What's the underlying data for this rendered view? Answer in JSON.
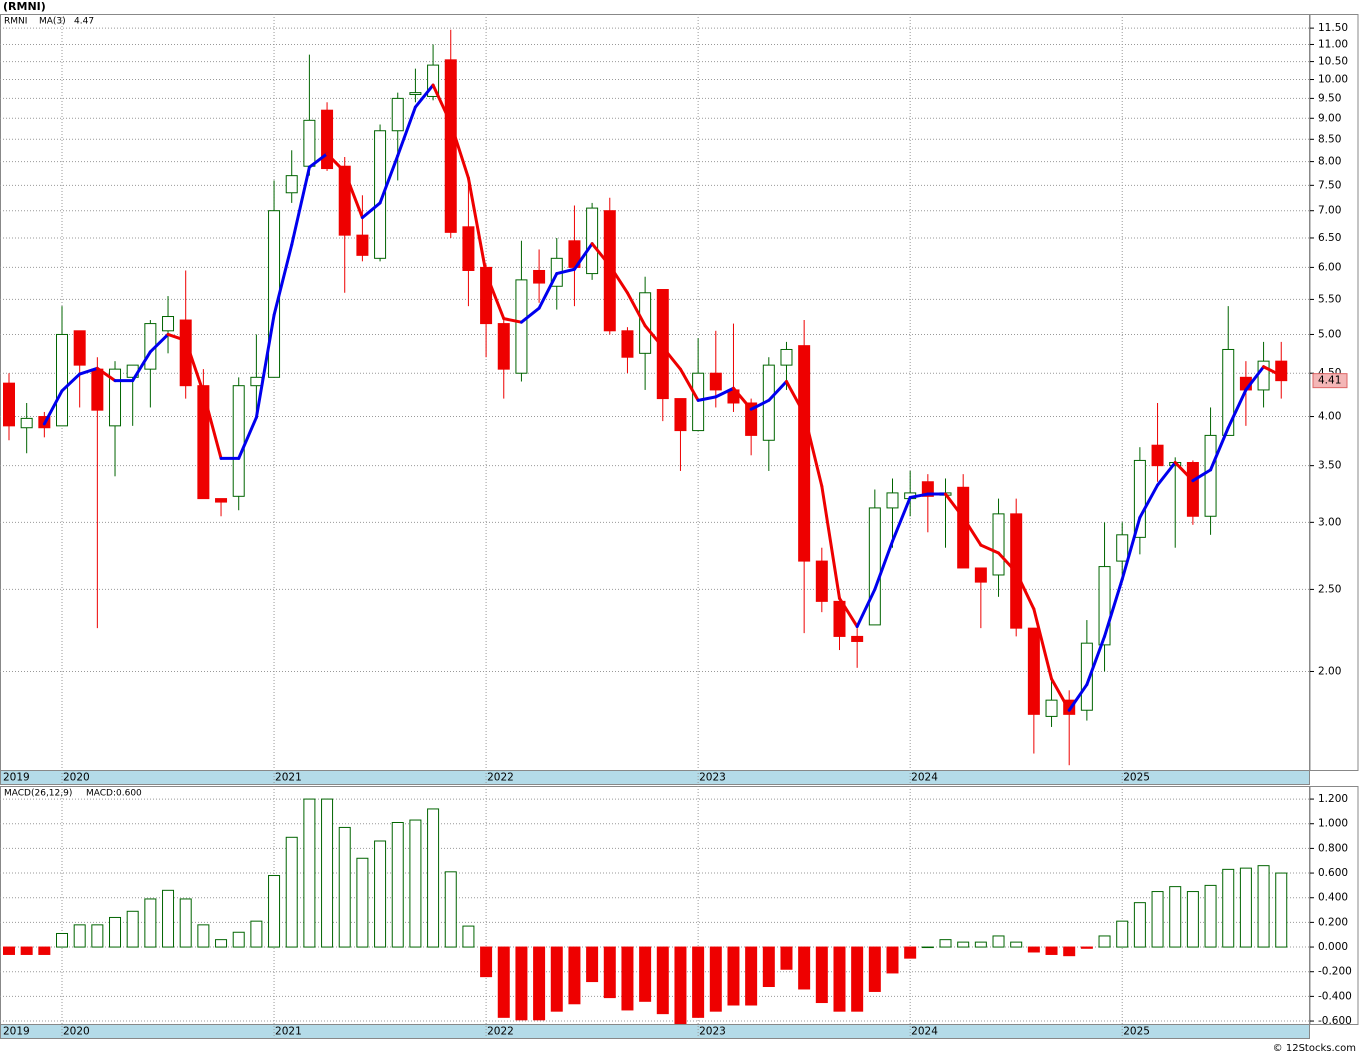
{
  "chart_data": [
    {
      "type": "candlestick",
      "title": "(RMNI)",
      "symbol": "RMNI",
      "ma_name": "MA(3)",
      "categories": [
        "2019",
        null,
        null,
        "2020",
        null,
        null,
        null,
        null,
        null,
        null,
        null,
        null,
        null,
        null,
        null,
        "2021",
        null,
        null,
        null,
        null,
        null,
        null,
        null,
        null,
        null,
        null,
        null,
        "2022",
        null,
        null,
        null,
        null,
        null,
        null,
        null,
        null,
        null,
        null,
        null,
        "2023",
        null,
        null,
        null,
        null,
        null,
        null,
        null,
        null,
        null,
        null,
        null,
        "2024",
        null,
        null,
        null,
        null,
        null,
        null,
        null,
        null,
        null,
        null,
        null,
        "2025",
        null,
        null,
        null,
        null,
        null,
        null,
        null,
        null,
        null
      ],
      "open": [
        4.38,
        3.88,
        4.0,
        3.9,
        5.05,
        4.55,
        3.9,
        4.45,
        4.55,
        5.05,
        5.2,
        4.35,
        3.2,
        3.22,
        4.35,
        4.45,
        7.35,
        7.9,
        9.2,
        7.9,
        6.55,
        6.15,
        8.7,
        9.6,
        9.55,
        10.55,
        6.7,
        6.0,
        5.15,
        4.5,
        5.95,
        5.7,
        6.45,
        5.9,
        7.0,
        5.05,
        4.75,
        5.65,
        4.2,
        3.85,
        4.5,
        4.3,
        4.15,
        3.75,
        4.6,
        4.85,
        2.7,
        2.42,
        2.2,
        2.27,
        3.12,
        3.2,
        3.35,
        3.23,
        3.3,
        2.65,
        2.6,
        3.07,
        2.25,
        1.77,
        1.85,
        1.8,
        2.15,
        2.7,
        2.88,
        3.7,
        3.5,
        3.53,
        3.05,
        3.8,
        4.45,
        4.3,
        4.65
      ],
      "high": [
        4.5,
        4.15,
        4.05,
        5.4,
        5.05,
        4.7,
        4.65,
        4.6,
        5.2,
        5.55,
        5.95,
        4.55,
        3.2,
        4.45,
        5.0,
        7.6,
        8.25,
        10.7,
        9.4,
        8.1,
        7.3,
        8.85,
        9.65,
        10.3,
        11.0,
        11.45,
        7.6,
        6.05,
        5.25,
        6.45,
        6.3,
        6.5,
        7.1,
        7.15,
        7.25,
        5.1,
        5.85,
        5.65,
        4.2,
        4.95,
        5.05,
        5.15,
        4.2,
        4.7,
        4.9,
        5.2,
        2.8,
        2.42,
        2.25,
        3.28,
        3.38,
        3.45,
        3.42,
        3.38,
        3.42,
        2.65,
        3.2,
        3.2,
        2.25,
        1.95,
        1.9,
        2.3,
        3.0,
        3.0,
        3.68,
        4.15,
        3.58,
        3.55,
        4.1,
        5.4,
        4.65,
        4.9,
        4.9
      ],
      "low": [
        3.75,
        3.62,
        3.78,
        3.9,
        4.1,
        2.25,
        3.4,
        3.9,
        4.1,
        4.75,
        4.2,
        3.2,
        3.05,
        3.1,
        4.0,
        4.45,
        7.15,
        7.7,
        7.8,
        5.6,
        6.1,
        6.1,
        7.6,
        9.4,
        9.45,
        6.5,
        5.4,
        4.7,
        4.2,
        4.4,
        5.45,
        5.35,
        5.4,
        5.8,
        5.0,
        4.5,
        4.3,
        3.95,
        3.45,
        3.85,
        4.1,
        4.05,
        3.6,
        3.45,
        4.3,
        2.22,
        2.35,
        2.12,
        2.02,
        2.27,
        2.8,
        3.05,
        2.92,
        2.8,
        2.65,
        2.25,
        2.45,
        2.2,
        1.6,
        1.72,
        1.55,
        1.75,
        2.0,
        2.6,
        2.75,
        3.35,
        2.8,
        2.98,
        2.9,
        3.8,
        3.9,
        4.1,
        4.2
      ],
      "close": [
        3.9,
        3.98,
        3.88,
        5.0,
        4.6,
        4.07,
        4.55,
        4.6,
        5.15,
        5.25,
        4.35,
        3.2,
        3.17,
        4.35,
        4.45,
        7.0,
        7.7,
        8.95,
        7.85,
        6.55,
        6.2,
        8.7,
        9.5,
        9.65,
        10.4,
        6.6,
        5.95,
        5.15,
        4.55,
        5.8,
        5.75,
        6.15,
        6.0,
        7.05,
        5.05,
        4.7,
        5.6,
        4.2,
        3.85,
        4.5,
        4.3,
        4.15,
        3.8,
        4.6,
        4.8,
        2.7,
        2.42,
        2.2,
        2.17,
        3.12,
        3.25,
        3.25,
        3.22,
        3.25,
        2.65,
        2.55,
        3.07,
        2.25,
        1.78,
        1.85,
        1.78,
        2.16,
        2.66,
        2.9,
        3.55,
        3.5,
        3.53,
        3.05,
        3.8,
        4.8,
        4.3,
        4.65,
        4.41
      ],
      "ma": [
        null,
        null,
        3.92,
        4.29,
        4.49,
        4.56,
        4.41,
        4.41,
        4.77,
        5.0,
        4.92,
        4.27,
        3.57,
        3.57,
        3.99,
        5.27,
        6.38,
        7.88,
        8.17,
        7.78,
        6.87,
        7.15,
        8.13,
        9.28,
        9.85,
        8.88,
        7.65,
        5.9,
        5.22,
        5.17,
        5.37,
        5.9,
        5.97,
        6.4,
        6.03,
        5.6,
        5.12,
        4.83,
        4.55,
        4.18,
        4.22,
        4.32,
        4.08,
        4.18,
        4.4,
        4.03,
        3.31,
        2.44,
        2.26,
        2.5,
        2.85,
        3.21,
        3.24,
        3.24,
        3.04,
        2.82,
        2.76,
        2.62,
        2.37,
        1.96,
        1.8,
        1.93,
        2.2,
        2.57,
        3.04,
        3.32,
        3.53,
        3.36,
        3.46,
        3.88,
        4.3,
        4.58,
        4.47
      ],
      "up_color": "#006400",
      "down_color": "#ee0000",
      "ma_up_color": "#0000ee",
      "ma_down_color": "#ee0000",
      "log_scale": true,
      "grid": true,
      "ylim": [
        1.53,
        11.95
      ],
      "yticks": [
        {
          "value": 2,
          "label": "2.00"
        },
        {
          "value": 2.5,
          "label": "2.50"
        },
        {
          "value": 3,
          "label": "3.00"
        },
        {
          "value": 3.5,
          "label": "3.50"
        },
        {
          "value": 4,
          "label": "4.00"
        },
        {
          "value": 4.5,
          "label": "4.50"
        },
        {
          "value": 5,
          "label": "5.00"
        },
        {
          "value": 5.5,
          "label": "5.50"
        },
        {
          "value": 6,
          "label": "6.00"
        },
        {
          "value": 6.5,
          "label": "6.50"
        },
        {
          "value": 7,
          "label": "7.00"
        },
        {
          "value": 7.5,
          "label": "7.50"
        },
        {
          "value": 8,
          "label": "8.00"
        },
        {
          "value": 8.5,
          "label": "8.50"
        },
        {
          "value": 9,
          "label": "9.00"
        },
        {
          "value": 9.5,
          "label": "9.50"
        },
        {
          "value": 10,
          "label": "10.00"
        },
        {
          "value": 10.5,
          "label": "10.50"
        },
        {
          "value": 11,
          "label": "11.00"
        },
        {
          "value": 11.5,
          "label": "11.50"
        }
      ]
    },
    {
      "type": "bar",
      "title": "MACD(26,12,9)",
      "value_label": "MACD:0.600",
      "categories": [
        "2019",
        null,
        null,
        "2020",
        null,
        null,
        null,
        null,
        null,
        null,
        null,
        null,
        null,
        null,
        null,
        "2021",
        null,
        null,
        null,
        null,
        null,
        null,
        null,
        null,
        null,
        null,
        null,
        "2022",
        null,
        null,
        null,
        null,
        null,
        null,
        null,
        null,
        null,
        null,
        null,
        "2023",
        null,
        null,
        null,
        null,
        null,
        null,
        null,
        null,
        null,
        null,
        null,
        "2024",
        null,
        null,
        null,
        null,
        null,
        null,
        null,
        null,
        null,
        null,
        null,
        "2025",
        null,
        null,
        null,
        null,
        null,
        null,
        null,
        null,
        null
      ],
      "values": [
        -0.06,
        -0.06,
        -0.06,
        0.11,
        0.18,
        0.18,
        0.24,
        0.29,
        0.39,
        0.46,
        0.39,
        0.18,
        0.06,
        0.12,
        0.21,
        0.58,
        0.89,
        1.2,
        1.2,
        0.97,
        0.72,
        0.86,
        1.01,
        1.03,
        1.12,
        0.61,
        0.17,
        -0.24,
        -0.57,
        -0.59,
        -0.59,
        -0.52,
        -0.46,
        -0.28,
        -0.41,
        -0.51,
        -0.44,
        -0.54,
        -0.62,
        -0.57,
        -0.52,
        -0.47,
        -0.47,
        -0.32,
        -0.18,
        -0.34,
        -0.45,
        -0.52,
        -0.52,
        -0.36,
        -0.21,
        -0.09,
        0.0,
        0.06,
        0.04,
        0.04,
        0.09,
        0.04,
        -0.04,
        -0.06,
        -0.07,
        -0.01,
        0.09,
        0.21,
        0.36,
        0.45,
        0.49,
        0.45,
        0.5,
        0.63,
        0.64,
        0.66,
        0.6
      ],
      "up_color": "#006400",
      "down_color": "#ee0000",
      "grid": true,
      "ylim": [
        -0.624,
        1.306
      ],
      "yticks": [
        {
          "value": -0.6,
          "label": "-0.600"
        },
        {
          "value": -0.4,
          "label": "-0.400"
        },
        {
          "value": -0.2,
          "label": "-0.200"
        },
        {
          "value": 0,
          "label": "0.000"
        },
        {
          "value": 0.2,
          "label": "0.200"
        },
        {
          "value": 0.4,
          "label": "0.400"
        },
        {
          "value": 0.6,
          "label": "0.600"
        },
        {
          "value": 0.8,
          "label": "0.800"
        },
        {
          "value": 1,
          "label": "1.000"
        },
        {
          "value": 1.2,
          "label": "1.200"
        }
      ]
    }
  ],
  "footer": "© 12Stocks.com"
}
